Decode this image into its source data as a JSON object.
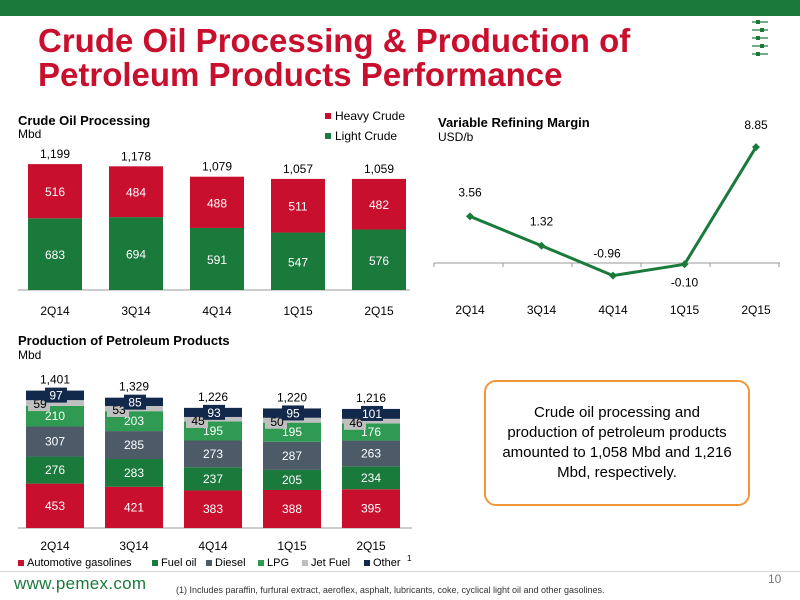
{
  "slide": {
    "title_line1": "Crude Oil Processing & Production of",
    "title_line2": "Petroleum Products Performance",
    "callout": "Crude oil processing and production of petroleum products amounted to 1,058 Mbd and 1,216 Mbd, respectively.",
    "footer_url": "www.pemex.com",
    "footnote": "(1) Includes paraffin, furfural extract, aeroflex, asphalt, lubricants, coke, cyclical light oil and other gasolines.",
    "page_number": "10"
  },
  "colors": {
    "green": "#1a7a3c",
    "red": "#c8102e",
    "gray": "#4d5a68",
    "light_gray": "#bfbfbf",
    "navy": "#13294b",
    "orange": "#f0973a"
  },
  "chart_data": [
    {
      "type": "bar",
      "stacked": true,
      "title": "Crude Oil Processing",
      "ylabel": "Mbd",
      "categories": [
        "2Q14",
        "3Q14",
        "4Q14",
        "1Q15",
        "2Q15"
      ],
      "series": [
        {
          "name": "Light Crude",
          "values": [
            683,
            694,
            591,
            547,
            576
          ],
          "color": "#1a7a3c"
        },
        {
          "name": "Heavy Crude",
          "values": [
            516,
            484,
            488,
            511,
            482
          ],
          "color": "#c8102e"
        }
      ],
      "totals": [
        "1,199",
        "1,178",
        "1,079",
        "1,057",
        "1,059"
      ],
      "legend": "top-right"
    },
    {
      "type": "line",
      "title": "Variable Refining Margin",
      "ylabel": "USD/b",
      "categories": [
        "2Q14",
        "3Q14",
        "4Q14",
        "1Q15",
        "2Q15"
      ],
      "series": [
        {
          "values": [
            3.56,
            1.32,
            -0.96,
            -0.1,
            8.85
          ],
          "labels": [
            "3.56",
            "1.32",
            "-0.96",
            "-0.10",
            "8.85"
          ],
          "color": "#1a7a3c"
        }
      ]
    },
    {
      "type": "bar",
      "stacked": true,
      "title": "Production of Petroleum Products",
      "ylabel": "Mbd",
      "categories": [
        "2Q14",
        "3Q14",
        "4Q14",
        "1Q15",
        "2Q15"
      ],
      "series": [
        {
          "name": "Automotive gasolines",
          "values": [
            453,
            421,
            383,
            388,
            395
          ],
          "color": "#c8102e"
        },
        {
          "name": "Fuel oil",
          "values": [
            276,
            283,
            237,
            205,
            234
          ],
          "color": "#1a7a3c"
        },
        {
          "name": "Diesel",
          "values": [
            307,
            285,
            273,
            287,
            263
          ],
          "color": "#4d5a68"
        },
        {
          "name": "LPG",
          "values": [
            210,
            203,
            195,
            195,
            176
          ],
          "color": "#2e9a52"
        },
        {
          "name": "Jet Fuel",
          "values": [
            59,
            53,
            45,
            50,
            46
          ],
          "color": "#bfbfbf"
        },
        {
          "name": "Other",
          "values": [
            97,
            85,
            93,
            95,
            101
          ],
          "color": "#13294b"
        }
      ],
      "legend_note": "1",
      "totals": [
        "1,401",
        "1,329",
        "1,226",
        "1,220",
        "1,216"
      ],
      "legend": "bottom"
    }
  ]
}
